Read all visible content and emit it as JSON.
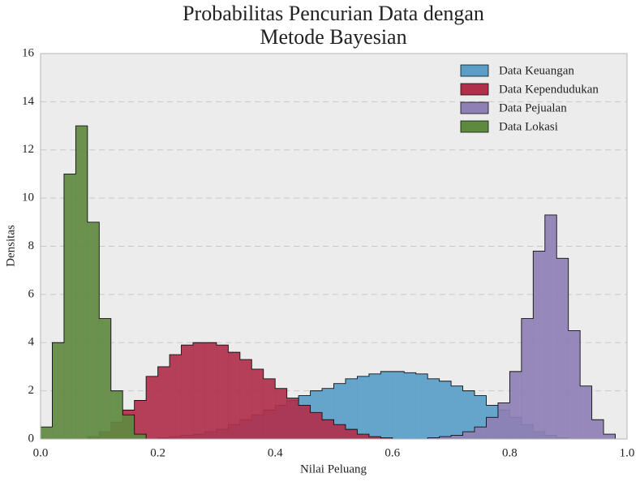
{
  "chart_data": {
    "type": "histogram",
    "title": "Probabilitas Pencurian Data dengan Metode Bayesian",
    "xlabel": "Nilai Peluang",
    "ylabel": "Densitas",
    "bins": [
      0,
      0.02,
      0.04,
      0.06,
      0.08,
      0.1,
      0.12,
      0.14,
      0.16,
      0.18,
      0.2,
      0.22,
      0.24,
      0.26,
      0.28,
      0.3,
      0.32,
      0.34,
      0.36,
      0.38,
      0.4,
      0.42,
      0.44,
      0.46,
      0.48,
      0.5,
      0.52,
      0.54,
      0.56,
      0.58,
      0.6,
      0.62,
      0.64,
      0.66,
      0.68,
      0.7,
      0.72,
      0.74,
      0.76,
      0.78,
      0.8,
      0.82,
      0.84,
      0.86,
      0.88,
      0.9,
      0.92,
      0.94,
      0.96,
      0.98,
      1
    ],
    "series": [
      {
        "name": "Data Keuangan",
        "color": "#5a9ec8",
        "values": [
          0,
          0,
          0,
          0,
          0,
          0,
          0,
          0,
          0,
          0,
          0.05,
          0.1,
          0.15,
          0.2,
          0.3,
          0.4,
          0.6,
          0.8,
          1.0,
          1.2,
          1.4,
          1.6,
          1.8,
          2.0,
          2.1,
          2.3,
          2.5,
          2.6,
          2.7,
          2.8,
          2.8,
          2.75,
          2.7,
          2.5,
          2.4,
          2.2,
          2.0,
          1.8,
          1.4,
          1.2,
          0.9,
          0.6,
          0.3,
          0.15,
          0.05,
          0,
          0,
          0,
          0,
          0
        ]
      },
      {
        "name": "Data Kependudukan",
        "color": "#b0304c",
        "values": [
          0,
          0,
          0,
          0,
          0.1,
          0.3,
          0.7,
          1.2,
          1.6,
          2.6,
          3.0,
          3.5,
          3.9,
          4.0,
          4.0,
          3.9,
          3.6,
          3.3,
          2.9,
          2.5,
          2.1,
          1.7,
          1.4,
          1.1,
          0.8,
          0.6,
          0.4,
          0.2,
          0.1,
          0.05,
          0,
          0,
          0,
          0,
          0,
          0,
          0,
          0,
          0,
          0,
          0,
          0,
          0,
          0,
          0,
          0,
          0,
          0,
          0,
          0
        ]
      },
      {
        "name": "Data Pejualan",
        "color": "#8e7fb4",
        "values": [
          0,
          0,
          0,
          0,
          0,
          0,
          0,
          0,
          0,
          0,
          0,
          0,
          0,
          0,
          0,
          0,
          0,
          0,
          0,
          0,
          0,
          0,
          0,
          0,
          0,
          0,
          0,
          0,
          0,
          0,
          0,
          0,
          0,
          0.05,
          0.1,
          0.15,
          0.3,
          0.5,
          0.9,
          1.5,
          2.8,
          5.0,
          7.8,
          9.3,
          7.5,
          4.5,
          2.2,
          0.8,
          0.2,
          0
        ]
      },
      {
        "name": "Data Lokasi",
        "color": "#5e8a40",
        "values": [
          0.5,
          4,
          11,
          13,
          9,
          5,
          2,
          1,
          0.2,
          0,
          0,
          0,
          0,
          0,
          0,
          0,
          0,
          0,
          0,
          0,
          0,
          0,
          0,
          0,
          0,
          0,
          0,
          0,
          0,
          0,
          0,
          0,
          0,
          0,
          0,
          0,
          0,
          0,
          0,
          0,
          0,
          0,
          0,
          0,
          0,
          0,
          0,
          0,
          0,
          0
        ]
      }
    ],
    "xlim": [
      0,
      1
    ],
    "xticks": [
      {
        "value": 0,
        "label": "0.0"
      },
      0.2,
      0.4,
      0.6,
      0.8,
      {
        "value": 1,
        "label": "1.0"
      }
    ],
    "ylim": [
      0,
      16
    ],
    "yticks": [
      0,
      2,
      4,
      6,
      8,
      10,
      12,
      14,
      16
    ],
    "grid": true,
    "legend": "upper right"
  }
}
